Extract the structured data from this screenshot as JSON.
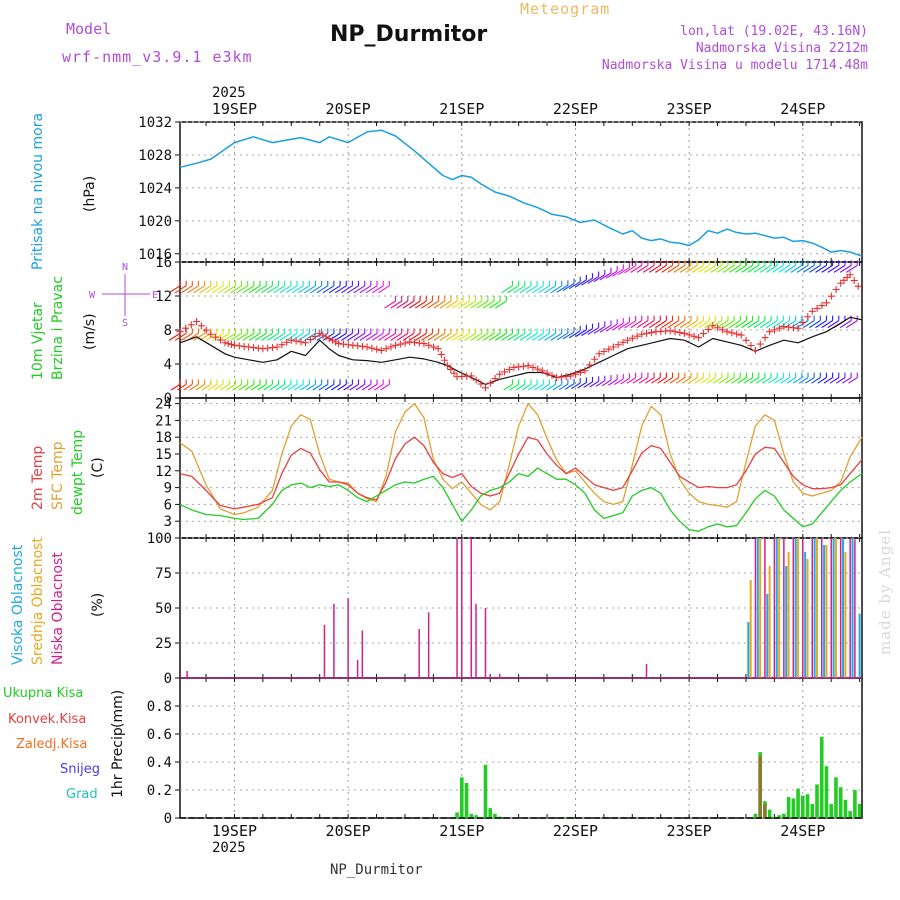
{
  "header": {
    "model_label": "Model",
    "model_name": "wrf-nmm_v3.9.1 e3km",
    "station_title": "NP_Durmitor",
    "meteogram_label": "Meteogram",
    "coords": "lon,lat (19.02E, 43.16N)",
    "elevation": "Nadmorska Visina 2212m",
    "model_elevation": "Nadmorska Visina u modelu 1714.48m"
  },
  "footer": {
    "station": "NP_Durmitor",
    "watermark": "made by Angel"
  },
  "time_axis": {
    "year": "2025",
    "day_labels": [
      "19SEP",
      "20SEP",
      "21SEP",
      "22SEP",
      "23SEP",
      "24SEP"
    ],
    "start_hour_offset": -11.5,
    "end_hour_offset": 132.5
  },
  "colors": {
    "pressure": "#1aa0e0",
    "wind_speed": "#111111",
    "gust": "#e83030",
    "temp2m": "#e84040",
    "sfc_temp": "#e0a030",
    "dewpt": "#22cc22",
    "high_cloud": "#20a8e0",
    "mid_cloud": "#e8a820",
    "low_cloud": "#d0208c",
    "total_precip": "#22cc22",
    "conv_precip": "#e84040",
    "frozen_precip": "#f07020",
    "snow": "#4a3ae0",
    "graupel": "#20c0c0"
  },
  "panels": {
    "pressure": {
      "label": "Pritisak na nivou mora",
      "unit": "(hPa)"
    },
    "wind": {
      "label_line1": "10m Vjetar",
      "label_line2": "Brzina i Pravac",
      "unit": "(m/s)",
      "compass_n": "N",
      "compass_s": "S",
      "compass_w": "W",
      "compass_e": "E"
    },
    "temp": {
      "label_2m": "2m Temp",
      "label_sfc": "SFC Temp",
      "label_dewpt": "dewpt Temp",
      "unit": "(C)"
    },
    "cloud": {
      "label_high": "Visoka Oblacnost",
      "label_mid": "Srednja Oblacnost",
      "label_low": "Niska Oblacnost",
      "unit": "(%)"
    },
    "precip": {
      "label": "1hr Precip",
      "unit": "(mm)",
      "legend": [
        "Ukupna Kisa",
        "Konvek.Kisa",
        "Zaledj.Kisa",
        "Snijeg",
        "Grad"
      ]
    }
  },
  "chart_data": [
    {
      "type": "line",
      "title": "Pritisak na nivou mora",
      "ylabel": "hPa",
      "ylim": [
        1015,
        1032
      ],
      "yticks": [
        1016,
        1020,
        1024,
        1028,
        1032
      ],
      "series": [
        {
          "name": "MSLP",
          "x": [
            -11.5,
            -8,
            -5,
            0,
            4,
            8,
            11,
            14,
            18,
            20,
            24,
            28,
            31,
            34,
            38,
            41,
            44,
            46,
            48,
            50,
            52,
            55,
            58,
            61,
            64,
            67,
            70,
            73,
            76,
            79,
            82,
            84,
            86,
            88,
            90,
            92,
            94,
            96,
            98,
            100,
            102,
            104,
            106,
            108,
            110,
            112,
            114,
            116,
            118,
            120,
            122,
            124,
            126,
            128,
            130,
            132.5
          ],
          "values": [
            1026.5,
            1027,
            1027.5,
            1029.5,
            1030.2,
            1029.5,
            1029.8,
            1030.1,
            1029.5,
            1030.2,
            1029.5,
            1030.8,
            1031,
            1030.3,
            1028.5,
            1027,
            1025.5,
            1025,
            1025.5,
            1025.3,
            1024.5,
            1023.5,
            1023,
            1022.2,
            1021.6,
            1020.8,
            1020.5,
            1019.8,
            1020.1,
            1019.2,
            1018.4,
            1018.8,
            1017.9,
            1017.6,
            1017.8,
            1017.4,
            1017.3,
            1017,
            1017.7,
            1018.8,
            1018.5,
            1019,
            1018.6,
            1018.4,
            1018.5,
            1018.2,
            1017.9,
            1018,
            1017.5,
            1017.6,
            1017.3,
            1016.8,
            1016.2,
            1016.4,
            1016.2,
            1015.7
          ]
        }
      ]
    },
    {
      "type": "line",
      "title": "10m Vjetar Brzina i Pravac",
      "ylabel": "m/s",
      "ylim": [
        0,
        16
      ],
      "yticks": [
        0,
        4,
        8,
        12,
        16
      ],
      "series": [
        {
          "name": "wind speed",
          "x": [
            -11.5,
            -8,
            -5,
            -2,
            0,
            3,
            6,
            9,
            12,
            15,
            18,
            20,
            22,
            25,
            28,
            31,
            34,
            37,
            40,
            43,
            45,
            47,
            50,
            53,
            56,
            59,
            62,
            65,
            68,
            71,
            74,
            77,
            80,
            83,
            86,
            89,
            92,
            95,
            98,
            101,
            104,
            107,
            110,
            113,
            116,
            119,
            122,
            125,
            128,
            130,
            132.5
          ],
          "values": [
            6.5,
            7.2,
            6.2,
            5.2,
            4.8,
            4.5,
            4.2,
            4.5,
            5.5,
            5,
            6.8,
            5.8,
            5,
            4.5,
            4.4,
            4.2,
            4.5,
            4.8,
            4.6,
            4.2,
            3.8,
            3.2,
            2.4,
            1.6,
            2.2,
            2.6,
            3,
            3,
            2.4,
            2.8,
            3.4,
            4.2,
            5,
            5.8,
            6.2,
            6.6,
            7,
            6.8,
            6,
            7,
            6.6,
            6.2,
            5.5,
            6.2,
            6.8,
            6.5,
            7.2,
            7.8,
            8.8,
            9.5,
            9.2
          ]
        },
        {
          "name": "gust",
          "x": [
            -11.5,
            -8,
            -5,
            -2,
            0,
            3,
            6,
            9,
            12,
            15,
            18,
            20,
            22,
            25,
            28,
            31,
            34,
            37,
            40,
            43,
            45,
            47,
            50,
            53,
            56,
            59,
            62,
            65,
            68,
            71,
            74,
            77,
            80,
            83,
            86,
            89,
            92,
            95,
            98,
            101,
            104,
            107,
            110,
            113,
            116,
            119,
            122,
            125,
            128,
            130,
            132.5
          ],
          "values": [
            7.8,
            9,
            7.5,
            6.5,
            6.2,
            6,
            5.8,
            6,
            6.8,
            6.5,
            7.6,
            7,
            6.4,
            6.2,
            6,
            5.6,
            6.2,
            6.6,
            6.4,
            5.8,
            3.8,
            2.5,
            2.6,
            1.2,
            2.8,
            3.6,
            3.8,
            3.2,
            2.4,
            2.6,
            3.2,
            5.2,
            6,
            6.8,
            7.5,
            7.8,
            7.9,
            7.6,
            7.1,
            8.5,
            7.8,
            7.4,
            5.6,
            7.8,
            8.4,
            8.2,
            10.2,
            11.2,
            13.5,
            14.5,
            12.5
          ]
        }
      ]
    },
    {
      "type": "line",
      "title": "2m / SFC / dewpt Temp",
      "ylabel": "C",
      "ylim": [
        0,
        25
      ],
      "yticks": [
        3,
        6,
        9,
        12,
        15,
        18,
        21,
        24
      ],
      "series": [
        {
          "name": "2m Temp",
          "x": [
            -11.5,
            -9,
            -6,
            -3,
            0,
            2,
            5,
            8,
            10,
            12,
            14,
            16,
            18,
            20,
            22,
            24,
            26,
            28,
            30,
            32,
            34,
            36,
            38,
            40,
            42,
            44,
            46,
            48,
            50,
            52,
            54,
            56,
            58,
            60,
            62,
            64,
            66,
            68,
            70,
            72,
            74,
            76,
            78,
            80,
            82,
            84,
            86,
            88,
            90,
            92,
            94,
            96,
            98,
            100,
            102,
            104,
            106,
            108,
            110,
            112,
            114,
            116,
            118,
            120,
            122,
            124,
            126,
            128,
            130,
            132.5
          ],
          "values": [
            11.5,
            11,
            8.5,
            5.8,
            5.2,
            5.5,
            6,
            7.2,
            11.5,
            14.8,
            16,
            15.2,
            12.2,
            10,
            10,
            9.5,
            8,
            7.2,
            6.8,
            10,
            14.2,
            16.8,
            18,
            16.5,
            13.5,
            11.5,
            10.8,
            11.5,
            9.2,
            8,
            7.5,
            8,
            11.5,
            15,
            18,
            17.5,
            15,
            13,
            11.5,
            12.5,
            11,
            9.5,
            9,
            8.5,
            9,
            12,
            15.2,
            16.5,
            16,
            13.5,
            11,
            10,
            9,
            9.2,
            9,
            9,
            9.5,
            12,
            15,
            16.2,
            16,
            13.5,
            11,
            9.5,
            8.8,
            8.8,
            9,
            9.5,
            11.5,
            14
          ]
        },
        {
          "name": "SFC Temp",
          "x": [
            -11.5,
            -9,
            -6,
            -3,
            0,
            2,
            5,
            8,
            10,
            12,
            14,
            16,
            18,
            20,
            22,
            24,
            26,
            28,
            30,
            32,
            34,
            36,
            38,
            40,
            42,
            44,
            46,
            48,
            50,
            52,
            54,
            56,
            58,
            60,
            62,
            64,
            66,
            68,
            70,
            72,
            74,
            76,
            78,
            80,
            82,
            84,
            86,
            88,
            90,
            92,
            94,
            96,
            98,
            100,
            102,
            104,
            106,
            108,
            110,
            112,
            114,
            116,
            118,
            120,
            122,
            124,
            126,
            128,
            130,
            132.5
          ],
          "values": [
            17,
            15.5,
            9.5,
            5.2,
            4.2,
            4.5,
            5.5,
            8.5,
            15,
            20,
            22,
            21.2,
            15,
            10.5,
            10,
            9.8,
            8,
            7,
            6.5,
            11,
            19,
            22.5,
            24,
            21.5,
            14,
            10.5,
            8.8,
            10,
            8,
            6,
            5,
            6.5,
            13,
            20,
            24,
            22,
            17.8,
            14,
            11.5,
            12,
            10,
            8,
            6.5,
            6,
            6.5,
            13,
            20,
            23.5,
            22,
            15,
            10.5,
            8,
            6.5,
            6,
            5.8,
            5.5,
            6.5,
            13.5,
            20,
            22,
            21,
            15,
            10,
            8,
            7.5,
            8,
            8.5,
            10,
            14.5,
            18
          ]
        },
        {
          "name": "dewpt Temp",
          "x": [
            -11.5,
            -9,
            -6,
            -3,
            0,
            2,
            5,
            8,
            10,
            12,
            14,
            16,
            18,
            20,
            22,
            24,
            26,
            28,
            30,
            32,
            34,
            36,
            38,
            40,
            42,
            44,
            46,
            48,
            50,
            52,
            54,
            56,
            58,
            60,
            62,
            64,
            66,
            68,
            70,
            72,
            74,
            76,
            78,
            80,
            82,
            84,
            86,
            88,
            90,
            92,
            94,
            96,
            98,
            100,
            102,
            104,
            106,
            108,
            110,
            112,
            114,
            116,
            118,
            120,
            122,
            124,
            126,
            128,
            130,
            132.5
          ],
          "values": [
            6,
            5,
            4.2,
            4,
            3.5,
            3.3,
            3.5,
            6,
            8.5,
            9.5,
            9.8,
            9,
            9.5,
            9.2,
            9.5,
            8.5,
            7.2,
            6.5,
            7.5,
            8.5,
            9.5,
            10,
            9.8,
            10.5,
            11,
            9,
            6,
            3,
            5,
            7.5,
            8.5,
            9,
            10,
            11.5,
            11,
            12.5,
            11.5,
            10.5,
            10.5,
            9.5,
            8,
            5,
            3.5,
            4,
            4.5,
            7.5,
            8.5,
            9,
            8,
            5,
            3,
            1.5,
            1.2,
            2,
            2.5,
            2,
            2.2,
            4.5,
            7,
            8.5,
            7.5,
            5,
            3.5,
            2,
            2.5,
            4.5,
            6.5,
            8.5,
            10,
            11.5
          ]
        }
      ]
    },
    {
      "type": "bar",
      "title": "Visoka / Srednja / Niska Oblacnost",
      "ylabel": "%",
      "ylim": [
        0,
        100
      ],
      "yticks": [
        0,
        25,
        50,
        75,
        100
      ],
      "series": [
        {
          "name": "Niska Oblacnost",
          "x": [
            -10,
            19,
            21,
            24,
            26,
            27,
            39,
            41,
            47,
            48,
            50,
            51,
            53,
            54,
            56,
            87,
            110,
            112,
            114,
            116,
            118,
            120,
            122,
            124,
            126,
            128,
            130,
            131
          ],
          "values": [
            5,
            38,
            53,
            57,
            13,
            34,
            35,
            47,
            100,
            100,
            100,
            53,
            50,
            2,
            3,
            10,
            100,
            100,
            100,
            100,
            100,
            100,
            100,
            100,
            100,
            100,
            100,
            99
          ]
        },
        {
          "name": "Srednja Oblacnost",
          "x": [
            109,
            111,
            113,
            115,
            117,
            119,
            121,
            123,
            125,
            127,
            129
          ],
          "values": [
            70,
            100,
            80,
            100,
            90,
            100,
            85,
            100,
            95,
            100,
            90
          ]
        },
        {
          "name": "Visoka Oblacnost",
          "x": [
            108.5,
            110.5,
            112.5,
            114.5,
            116.5,
            118.5,
            120.5,
            122.5,
            124.5,
            126.5,
            128.5,
            130.5,
            132
          ],
          "values": [
            40,
            100,
            60,
            100,
            80,
            100,
            90,
            100,
            95,
            100,
            100,
            100,
            46
          ]
        }
      ]
    },
    {
      "type": "bar",
      "title": "1hr Precip",
      "ylabel": "mm",
      "ylim": [
        0,
        1.0
      ],
      "yticks": [
        0,
        0.2,
        0.4,
        0.6,
        0.8
      ],
      "series": [
        {
          "name": "Ukupna Kisa",
          "x": [
            47,
            48,
            49,
            50,
            51,
            53,
            54,
            55,
            56,
            70,
            110,
            111,
            112,
            113,
            114,
            115,
            116,
            117,
            118,
            119,
            120,
            121,
            122,
            123,
            124,
            125,
            126,
            127,
            128,
            129,
            130,
            131,
            132
          ],
          "values": [
            0.04,
            0.29,
            0.25,
            0.03,
            0.02,
            0.38,
            0.07,
            0.03,
            0.01,
            0.005,
            0.03,
            0.47,
            0.12,
            0.06,
            0.01,
            0.02,
            0.03,
            0.15,
            0.14,
            0.21,
            0.16,
            0.17,
            0.1,
            0.24,
            0.58,
            0.37,
            0.1,
            0.29,
            0.22,
            0.13,
            0.05,
            0.2,
            0.1
          ]
        },
        {
          "name": "Konvek.Kisa",
          "x": [
            111,
            112
          ],
          "values": [
            0.44,
            0.1
          ]
        }
      ]
    }
  ]
}
